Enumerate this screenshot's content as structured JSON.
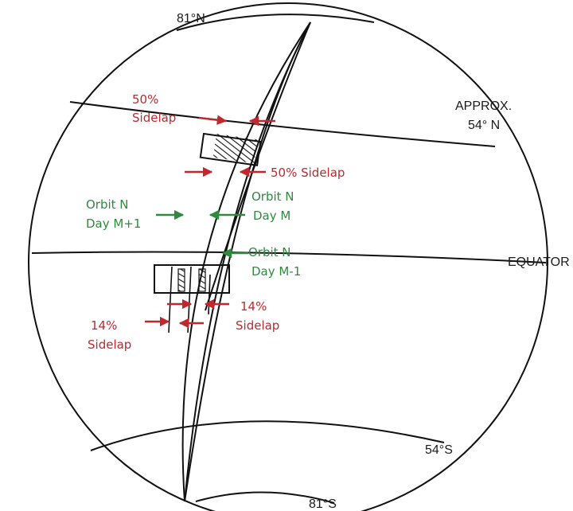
{
  "labels": {
    "north_pole": "81°N",
    "south_pole": "81°S",
    "approx": "APPROX.",
    "lat_54n": "54° N",
    "equator": "EQUATOR",
    "lat_54s": "54°S"
  },
  "annotations": {
    "sidelap_top_pct": "50%",
    "sidelap_top_word": "Sidelap",
    "sidelap_mid": "50% Sidelap",
    "orbit_m1_line1": "Orbit N",
    "orbit_m1_line2": "Day M+1",
    "orbit_m_line1": "Orbit N",
    "orbit_m_line2": "Day M",
    "orbit_mm1_line1": "Orbit N",
    "orbit_mm1_line2": "Day M-1",
    "sidelap14_left_pct": "14%",
    "sidelap14_left_word": "Sidelap",
    "sidelap14_right_pct": "14%",
    "sidelap14_right_word": "Sidelap"
  },
  "colors": {
    "red": "#c0282d",
    "green": "#2e8b3e",
    "ink": "#111111"
  }
}
